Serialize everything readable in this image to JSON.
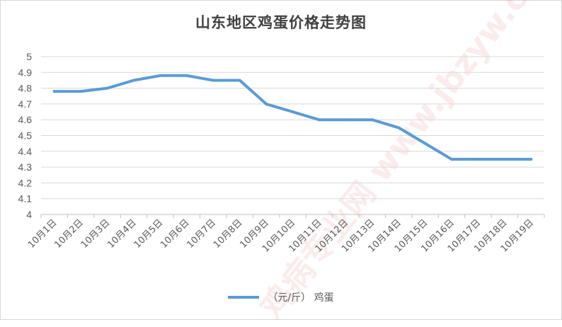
{
  "chart_data": {
    "type": "line",
    "title": "山东地区鸡蛋价格走势图",
    "categories": [
      "10月1日",
      "10月2日",
      "10月3日",
      "10月4日",
      "10月5日",
      "10月6日",
      "10月7日",
      "10月8日",
      "10月9日",
      "10月10日",
      "10月11日",
      "10月12日",
      "10月13日",
      "10月14日",
      "10月15日",
      "10月16日",
      "10月17日",
      "10月18日",
      "10月19日"
    ],
    "series": [
      {
        "name": "（元/斤） 鸡蛋",
        "color": "#5b9bd5",
        "values": [
          4.78,
          4.78,
          4.8,
          4.85,
          4.88,
          4.88,
          4.85,
          4.85,
          4.7,
          4.65,
          4.6,
          4.6,
          4.6,
          4.55,
          4.45,
          4.35,
          4.35,
          4.35,
          4.35
        ]
      }
    ],
    "ylim": [
      4,
      5
    ],
    "yticks": [
      "4",
      "4.1",
      "4.2",
      "4.3",
      "4.4",
      "4.5",
      "4.6",
      "4.7",
      "4.8",
      "4.9",
      "5"
    ],
    "grid": true,
    "legend_position": "bottom"
  },
  "watermark": "鸡病专业网 www.jbzyw.com"
}
